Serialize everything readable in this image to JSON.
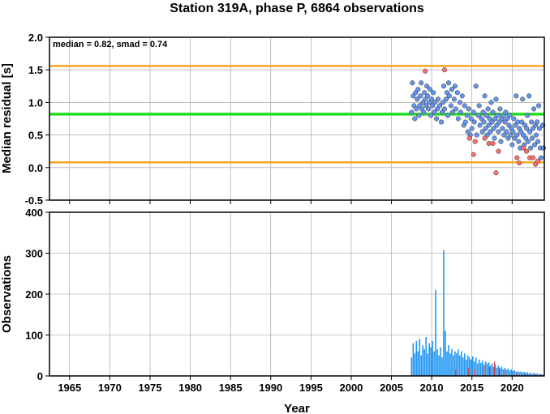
{
  "chart_data": [
    {
      "type": "scatter",
      "title": "Station 319A, phase P, 6864 observations",
      "xlabel": "",
      "ylabel": "Median residual [s]",
      "xlim": [
        1962.5,
        2024.0
      ],
      "ylim": [
        -0.5,
        2.0
      ],
      "yticks": [
        "-0.5",
        "0.0",
        "0.5",
        "1.0",
        "1.5",
        "2.0"
      ],
      "grid": true,
      "annotation": "median = 0.82, smad = 0.74",
      "reference_lines": {
        "median": 0.82,
        "upper": 1.56,
        "lower": 0.08,
        "median_color": "#22dd22",
        "bound_color": "#f5a623"
      },
      "series": [
        {
          "color": "#6495ed",
          "points": [
            [
              2007.5,
              0.85
            ],
            [
              2007.6,
              1.3
            ],
            [
              2007.7,
              1.1
            ],
            [
              2007.8,
              0.95
            ],
            [
              2007.9,
              0.75
            ],
            [
              2008.0,
              1.15
            ],
            [
              2008.1,
              0.9
            ],
            [
              2008.2,
              1.05
            ],
            [
              2008.3,
              1.2
            ],
            [
              2008.4,
              0.8
            ],
            [
              2008.5,
              0.95
            ],
            [
              2008.6,
              1.1
            ],
            [
              2008.7,
              1.3
            ],
            [
              2008.8,
              0.9
            ],
            [
              2008.9,
              1.0
            ],
            [
              2009.0,
              0.85
            ],
            [
              2009.1,
              1.15
            ],
            [
              2009.2,
              1.05
            ],
            [
              2009.3,
              0.95
            ],
            [
              2009.4,
              1.25
            ],
            [
              2009.5,
              1.1
            ],
            [
              2009.6,
              0.9
            ],
            [
              2009.7,
              1.0
            ],
            [
              2009.8,
              1.2
            ],
            [
              2009.9,
              0.8
            ],
            [
              2010.0,
              1.05
            ],
            [
              2010.1,
              0.95
            ],
            [
              2010.2,
              1.15
            ],
            [
              2010.3,
              0.85
            ],
            [
              2010.4,
              1.0
            ],
            [
              2010.6,
              0.75
            ],
            [
              2010.7,
              0.9
            ],
            [
              2010.8,
              1.05
            ],
            [
              2011.0,
              0.95
            ],
            [
              2011.2,
              0.7
            ],
            [
              2011.3,
              0.85
            ],
            [
              2011.4,
              1.0
            ],
            [
              2011.5,
              1.25
            ],
            [
              2011.6,
              0.9
            ],
            [
              2011.8,
              1.05
            ],
            [
              2011.9,
              1.15
            ],
            [
              2012.0,
              0.8
            ],
            [
              2012.1,
              1.3
            ],
            [
              2012.2,
              1.1
            ],
            [
              2012.4,
              0.95
            ],
            [
              2012.5,
              1.2
            ],
            [
              2012.6,
              0.85
            ],
            [
              2012.8,
              1.05
            ],
            [
              2012.9,
              1.25
            ],
            [
              2013.0,
              0.9
            ],
            [
              2013.2,
              1.15
            ],
            [
              2013.3,
              0.75
            ],
            [
              2013.5,
              1.0
            ],
            [
              2013.6,
              0.85
            ],
            [
              2013.8,
              1.1
            ],
            [
              2014.0,
              0.65
            ],
            [
              2014.1,
              0.95
            ],
            [
              2014.2,
              0.7
            ],
            [
              2014.4,
              0.8
            ],
            [
              2014.5,
              0.55
            ],
            [
              2014.6,
              0.9
            ],
            [
              2014.8,
              0.5
            ],
            [
              2014.9,
              0.75
            ],
            [
              2015.0,
              0.6
            ],
            [
              2015.2,
              0.85
            ],
            [
              2015.3,
              0.7
            ],
            [
              2015.5,
              1.25
            ],
            [
              2015.6,
              0.5
            ],
            [
              2015.8,
              0.8
            ],
            [
              2015.9,
              0.95
            ],
            [
              2016.0,
              0.65
            ],
            [
              2016.2,
              0.75
            ],
            [
              2016.3,
              0.55
            ],
            [
              2016.4,
              0.85
            ],
            [
              2016.5,
              0.7
            ],
            [
              2016.6,
              1.1
            ],
            [
              2016.7,
              0.6
            ],
            [
              2016.8,
              0.8
            ],
            [
              2016.9,
              0.5
            ],
            [
              2017.0,
              0.9
            ],
            [
              2017.1,
              0.65
            ],
            [
              2017.2,
              0.75
            ],
            [
              2017.3,
              0.55
            ],
            [
              2017.4,
              1.0
            ],
            [
              2017.5,
              0.7
            ],
            [
              2017.6,
              0.85
            ],
            [
              2017.7,
              0.6
            ],
            [
              2017.8,
              0.45
            ],
            [
              2017.9,
              0.75
            ],
            [
              2018.0,
              1.05
            ],
            [
              2018.1,
              0.65
            ],
            [
              2018.2,
              0.8
            ],
            [
              2018.3,
              0.55
            ],
            [
              2018.4,
              0.7
            ],
            [
              2018.5,
              0.9
            ],
            [
              2018.6,
              0.4
            ],
            [
              2018.7,
              0.75
            ],
            [
              2018.8,
              0.6
            ],
            [
              2018.9,
              0.8
            ],
            [
              2019.0,
              0.5
            ],
            [
              2019.1,
              0.7
            ],
            [
              2019.2,
              0.85
            ],
            [
              2019.3,
              0.55
            ],
            [
              2019.4,
              0.75
            ],
            [
              2019.5,
              0.45
            ],
            [
              2019.6,
              0.65
            ],
            [
              2019.7,
              0.8
            ],
            [
              2019.8,
              0.5
            ],
            [
              2019.9,
              0.6
            ],
            [
              2020.0,
              0.35
            ],
            [
              2020.1,
              0.55
            ],
            [
              2020.2,
              0.75
            ],
            [
              2020.3,
              0.45
            ],
            [
              2020.4,
              0.65
            ],
            [
              2020.5,
              1.1
            ],
            [
              2020.6,
              0.5
            ],
            [
              2020.7,
              0.7
            ],
            [
              2020.8,
              0.4
            ],
            [
              2020.9,
              0.6
            ],
            [
              2021.0,
              0.3
            ],
            [
              2021.1,
              0.55
            ],
            [
              2021.2,
              0.7
            ],
            [
              2021.3,
              1.05
            ],
            [
              2021.4,
              0.5
            ],
            [
              2021.5,
              0.35
            ],
            [
              2021.6,
              0.65
            ],
            [
              2021.7,
              0.45
            ],
            [
              2021.8,
              0.6
            ],
            [
              2021.9,
              0.8
            ],
            [
              2022.0,
              0.4
            ],
            [
              2022.1,
              1.1
            ],
            [
              2022.2,
              0.55
            ],
            [
              2022.3,
              0.3
            ],
            [
              2022.4,
              0.7
            ],
            [
              2022.5,
              0.45
            ],
            [
              2022.6,
              0.6
            ],
            [
              2022.7,
              0.9
            ],
            [
              2022.8,
              0.35
            ],
            [
              2022.9,
              0.65
            ],
            [
              2023.0,
              0.5
            ],
            [
              2023.1,
              0.7
            ],
            [
              2023.2,
              0.4
            ],
            [
              2023.3,
              0.95
            ],
            [
              2023.4,
              0.6
            ],
            [
              2023.5,
              0.3
            ],
            [
              2023.6,
              0.15
            ],
            [
              2023.8,
              0.65
            ],
            [
              2023.9,
              0.3
            ]
          ]
        },
        {
          "color": "#fa6e6e",
          "points": [
            [
              2009.2,
              1.48
            ],
            [
              2011.6,
              1.5
            ],
            [
              2014.7,
              0.45
            ],
            [
              2015.2,
              0.2
            ],
            [
              2015.4,
              0.4
            ],
            [
              2016.6,
              0.45
            ],
            [
              2017.1,
              0.37
            ],
            [
              2017.6,
              0.37
            ],
            [
              2018.0,
              -0.08
            ],
            [
              2018.3,
              0.25
            ],
            [
              2020.6,
              0.15
            ],
            [
              2020.9,
              0.07
            ],
            [
              2021.4,
              0.3
            ],
            [
              2021.8,
              0.25
            ],
            [
              2022.2,
              0.15
            ],
            [
              2022.6,
              0.15
            ],
            [
              2022.9,
              0.05
            ],
            [
              2023.2,
              0.1
            ]
          ]
        }
      ]
    },
    {
      "type": "bar",
      "xlabel": "Year",
      "ylabel": "Observations",
      "xlim": [
        1962.5,
        2024.0
      ],
      "ylim": [
        0,
        400
      ],
      "yticks": [
        "0",
        "100",
        "200",
        "300",
        "400"
      ],
      "xticks": [
        "1965",
        "1970",
        "1975",
        "1980",
        "1985",
        "1990",
        "1995",
        "2000",
        "2005",
        "2010",
        "2015",
        "2020"
      ],
      "grid": true,
      "bar_color": "#2196f3",
      "highlight_color": "#e53935",
      "bars": [
        [
          2007.5,
          45
        ],
        [
          2007.7,
          80
        ],
        [
          2007.9,
          55
        ],
        [
          2008.1,
          85
        ],
        [
          2008.3,
          60
        ],
        [
          2008.5,
          90
        ],
        [
          2008.7,
          50
        ],
        [
          2008.9,
          75
        ],
        [
          2009.1,
          65
        ],
        [
          2009.3,
          95
        ],
        [
          2009.5,
          55
        ],
        [
          2009.7,
          80
        ],
        [
          2009.9,
          70
        ],
        [
          2010.1,
          85
        ],
        [
          2010.3,
          60
        ],
        [
          2010.5,
          210
        ],
        [
          2010.7,
          65
        ],
        [
          2010.9,
          50
        ],
        [
          2011.1,
          70
        ],
        [
          2011.3,
          45
        ],
        [
          2011.5,
          307
        ],
        [
          2011.7,
          110
        ],
        [
          2011.9,
          60
        ],
        [
          2012.1,
          75
        ],
        [
          2012.3,
          55
        ],
        [
          2012.5,
          65
        ],
        [
          2012.7,
          50
        ],
        [
          2012.9,
          60
        ],
        [
          2013.1,
          55
        ],
        [
          2013.3,
          65
        ],
        [
          2013.5,
          50
        ],
        [
          2013.7,
          60
        ],
        [
          2013.9,
          45
        ],
        [
          2014.1,
          55
        ],
        [
          2014.3,
          40
        ],
        [
          2014.5,
          50
        ],
        [
          2014.7,
          45
        ],
        [
          2014.9,
          40
        ],
        [
          2015.1,
          48
        ],
        [
          2015.3,
          35
        ],
        [
          2015.5,
          45
        ],
        [
          2015.7,
          30
        ],
        [
          2015.9,
          40
        ],
        [
          2016.1,
          32
        ],
        [
          2016.3,
          38
        ],
        [
          2016.5,
          28
        ],
        [
          2016.7,
          35
        ],
        [
          2016.9,
          30
        ],
        [
          2017.1,
          33
        ],
        [
          2017.3,
          25
        ],
        [
          2017.5,
          30
        ],
        [
          2017.7,
          22
        ],
        [
          2017.9,
          28
        ],
        [
          2018.1,
          20
        ],
        [
          2018.3,
          25
        ],
        [
          2018.5,
          18
        ],
        [
          2018.7,
          22
        ],
        [
          2018.9,
          16
        ],
        [
          2019.1,
          20
        ],
        [
          2019.3,
          15
        ],
        [
          2019.5,
          18
        ],
        [
          2019.7,
          13
        ],
        [
          2019.9,
          16
        ],
        [
          2020.1,
          12
        ],
        [
          2020.3,
          14
        ],
        [
          2020.5,
          10
        ],
        [
          2020.7,
          12
        ],
        [
          2020.9,
          9
        ],
        [
          2021.1,
          11
        ],
        [
          2021.3,
          8
        ],
        [
          2021.5,
          10
        ],
        [
          2021.7,
          7
        ],
        [
          2021.9,
          9
        ],
        [
          2022.1,
          6
        ],
        [
          2022.3,
          8
        ],
        [
          2022.5,
          5
        ],
        [
          2022.7,
          7
        ],
        [
          2022.9,
          5
        ],
        [
          2023.1,
          6
        ],
        [
          2023.3,
          4
        ],
        [
          2023.5,
          5
        ],
        [
          2023.7,
          4
        ],
        [
          2023.9,
          3
        ]
      ],
      "highlight_bars": [
        [
          2013.0,
          15
        ],
        [
          2014.6,
          20
        ],
        [
          2015.3,
          15
        ],
        [
          2016.5,
          25
        ],
        [
          2017.2,
          22
        ],
        [
          2017.8,
          35
        ],
        [
          2018.4,
          20
        ],
        [
          2019.1,
          12
        ],
        [
          2020.5,
          8
        ],
        [
          2021.6,
          6
        ],
        [
          2022.8,
          5
        ],
        [
          2023.5,
          4
        ]
      ]
    }
  ]
}
